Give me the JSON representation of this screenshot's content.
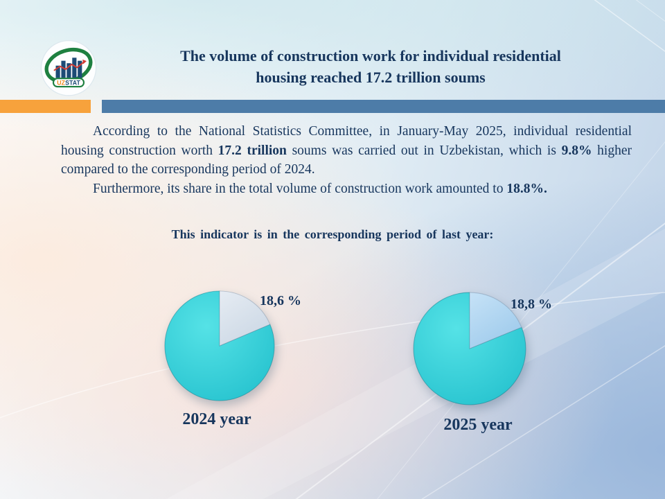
{
  "logo": {
    "uz_text": "UZ",
    "stat_text": "STAT"
  },
  "header": {
    "title_line1": "The volume of construction work for individual residential",
    "title_line2": "housing reached 17.2 trillion soums"
  },
  "colors": {
    "navy_text": "#17365d",
    "orange_bar": "#f7a23c",
    "blue_bar": "#4d7ca8",
    "pie_cyan": "#35d2da",
    "pie_slice_2024": "#d8e1eb",
    "pie_slice_2025": "#abd4f0"
  },
  "paragraphs": {
    "p1": [
      {
        "text": "According to the National Statistics Committee, in January-May 2025, individual residential housing construction worth ",
        "bold": false
      },
      {
        "text": "17.2 trillion",
        "bold": true
      },
      {
        "text": " soums was carried out in Uzbekistan, which is ",
        "bold": false
      },
      {
        "text": "9.8%",
        "bold": true
      },
      {
        "text": " higher compared to the corresponding period of 2024.",
        "bold": false
      }
    ],
    "p2": [
      {
        "text": "Furthermore, its share in the total volume of construction work amounted to ",
        "bold": false
      },
      {
        "text": "18.8%.",
        "bold": true
      }
    ]
  },
  "subtitle": "This indicator is in the corresponding period of last year:",
  "chart_data": [
    {
      "type": "pie",
      "values": [
        18.6,
        81.4
      ],
      "percent_label": "18,6 %",
      "year_label": "2024 year",
      "start_angle_deg": -90,
      "direction": "clockwise",
      "colors": {
        "slice_light": "#e6ecf3",
        "slice_dark": "#ccd8e5",
        "main_light": "#55e2e6",
        "main_dark": "#27c3cf"
      }
    },
    {
      "type": "pie",
      "values": [
        18.8,
        81.2
      ],
      "percent_label": "18,8 %",
      "year_label": "2025 year",
      "start_angle_deg": -90,
      "direction": "clockwise",
      "colors": {
        "slice_light": "#c6e2f7",
        "slice_dark": "#9fcbec",
        "main_light": "#55e2e6",
        "main_dark": "#27c3cf"
      }
    }
  ]
}
